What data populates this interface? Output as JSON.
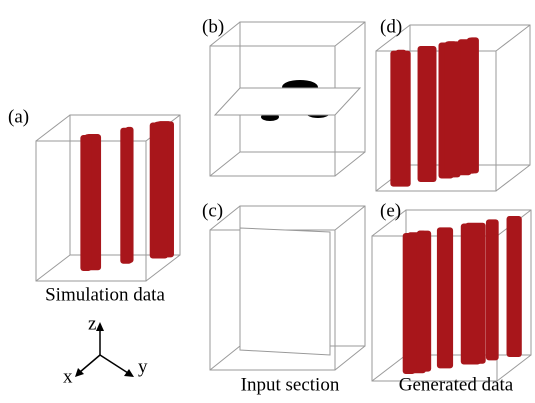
{
  "panels": [
    {
      "label": "(a)",
      "caption": "Simulation data"
    },
    {
      "label": "(b)"
    },
    {
      "label": "(c)",
      "caption": "Input section"
    },
    {
      "label": "(d)"
    },
    {
      "label": "(e)",
      "caption": "Generated data"
    }
  ],
  "axes": {
    "z": "z",
    "x": "x",
    "y": "y"
  }
}
